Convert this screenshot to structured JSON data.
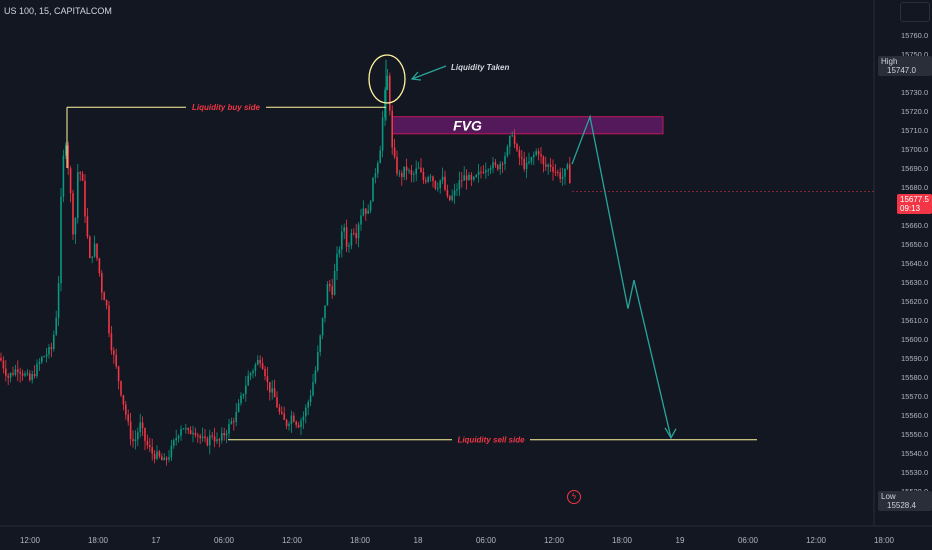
{
  "header": {
    "symbol": "US 100, 15, CAPITALCOM"
  },
  "price_axis": {
    "ticks": [
      "15760.0",
      "15750.0",
      "15740.0",
      "15730.0",
      "15720.0",
      "15710.0",
      "15700.0",
      "15690.0",
      "15680.0",
      "15670.0",
      "15660.0",
      "15650.0",
      "15640.0",
      "15630.0",
      "15620.0",
      "15610.0",
      "15600.0",
      "15590.0",
      "15580.0",
      "15570.0",
      "15560.0",
      "15550.0",
      "15540.0",
      "15530.0",
      "15520.0"
    ],
    "high_label": "High",
    "high_value": "15747.0",
    "last_value": "15677.5",
    "last_timer": "09:13",
    "low_label": "Low",
    "low_value": "15528.4"
  },
  "time_axis": {
    "ticks": [
      "12:00",
      "18:00",
      "17",
      "06:00",
      "12:00",
      "18:00",
      "18",
      "06:00",
      "12:00",
      "18:00",
      "19",
      "06:00",
      "12:00",
      "18:00"
    ]
  },
  "annotations": {
    "buy_side": "Liquidity buy side",
    "sell_side": "Liquidity sell side",
    "taken": "Liquidity Taken",
    "fvg": "FVG"
  },
  "colors": {
    "background": "#131722",
    "up": "#089981",
    "down": "#f23645",
    "fvg_fill": "#6a1b6e",
    "fvg_border": "#c2185b",
    "line": "#fff59d",
    "arrow": "#26a69a",
    "label_red": "#f23645"
  },
  "chart_data": {
    "type": "candlestick",
    "title": "US 100, 15, CAPITALCOM",
    "ylim": [
      15520,
      15765
    ],
    "path": [
      [
        0,
        15590
      ],
      [
        8,
        15580
      ],
      [
        18,
        15585
      ],
      [
        30,
        15578
      ],
      [
        42,
        15590
      ],
      [
        52,
        15595
      ],
      [
        58,
        15620
      ],
      [
        62,
        15690
      ],
      [
        66,
        15705
      ],
      [
        70,
        15680
      ],
      [
        74,
        15650
      ],
      [
        78,
        15690
      ],
      [
        82,
        15685
      ],
      [
        86,
        15660
      ],
      [
        90,
        15640
      ],
      [
        94,
        15650
      ],
      [
        98,
        15640
      ],
      [
        102,
        15625
      ],
      [
        106,
        15620
      ],
      [
        110,
        15600
      ],
      [
        114,
        15590
      ],
      [
        118,
        15580
      ],
      [
        122,
        15570
      ],
      [
        126,
        15560
      ],
      [
        130,
        15550
      ],
      [
        134,
        15545
      ],
      [
        140,
        15555
      ],
      [
        146,
        15545
      ],
      [
        152,
        15540
      ],
      [
        158,
        15538
      ],
      [
        164,
        15535
      ],
      [
        170,
        15540
      ],
      [
        176,
        15548
      ],
      [
        182,
        15555
      ],
      [
        188,
        15550
      ],
      [
        194,
        15553
      ],
      [
        200,
        15548
      ],
      [
        206,
        15545
      ],
      [
        212,
        15550
      ],
      [
        218,
        15545
      ],
      [
        224,
        15550
      ],
      [
        230,
        15555
      ],
      [
        236,
        15560
      ],
      [
        242,
        15570
      ],
      [
        248,
        15580
      ],
      [
        254,
        15585
      ],
      [
        260,
        15590
      ],
      [
        264,
        15585
      ],
      [
        268,
        15575
      ],
      [
        274,
        15570
      ],
      [
        280,
        15560
      ],
      [
        286,
        15555
      ],
      [
        292,
        15560
      ],
      [
        298,
        15555
      ],
      [
        304,
        15560
      ],
      [
        310,
        15570
      ],
      [
        316,
        15585
      ],
      [
        320,
        15600
      ],
      [
        324,
        15615
      ],
      [
        328,
        15630
      ],
      [
        332,
        15625
      ],
      [
        336,
        15640
      ],
      [
        340,
        15650
      ],
      [
        344,
        15660
      ],
      [
        348,
        15645
      ],
      [
        352,
        15660
      ],
      [
        356,
        15655
      ],
      [
        360,
        15665
      ],
      [
        364,
        15670
      ],
      [
        368,
        15665
      ],
      [
        372,
        15680
      ],
      [
        376,
        15690
      ],
      [
        380,
        15700
      ],
      [
        384,
        15725
      ],
      [
        388,
        15740
      ],
      [
        392,
        15700
      ],
      [
        396,
        15690
      ],
      [
        400,
        15685
      ],
      [
        406,
        15690
      ],
      [
        412,
        15685
      ],
      [
        418,
        15690
      ],
      [
        424,
        15683
      ],
      [
        430,
        15688
      ],
      [
        436,
        15680
      ],
      [
        442,
        15685
      ],
      [
        448,
        15672
      ],
      [
        454,
        15676
      ],
      [
        460,
        15683
      ],
      [
        466,
        15686
      ],
      [
        472,
        15682
      ],
      [
        478,
        15686
      ],
      [
        484,
        15690
      ],
      [
        490,
        15692
      ],
      [
        496,
        15690
      ],
      [
        502,
        15694
      ],
      [
        508,
        15700
      ],
      [
        512,
        15710
      ],
      [
        516,
        15698
      ],
      [
        520,
        15695
      ],
      [
        526,
        15690
      ],
      [
        532,
        15695
      ],
      [
        538,
        15700
      ],
      [
        544,
        15690
      ],
      [
        550,
        15692
      ],
      [
        556,
        15688
      ],
      [
        562,
        15685
      ],
      [
        568,
        15690
      ],
      [
        572,
        15677.5
      ]
    ],
    "levels": [
      {
        "name": "Liquidity buy side",
        "price": 15722,
        "x0": 67,
        "x1": 386
      },
      {
        "name": "Liquidity sell side",
        "price": 15547,
        "x0": 228,
        "x1": 757
      }
    ],
    "fvg": {
      "low": 15708,
      "high": 15717,
      "x0": 392,
      "x1": 663
    },
    "projection": [
      [
        572,
        15692
      ],
      [
        590,
        15717
      ],
      [
        628,
        15616
      ],
      [
        634,
        15631
      ],
      [
        671,
        15548
      ]
    ]
  }
}
